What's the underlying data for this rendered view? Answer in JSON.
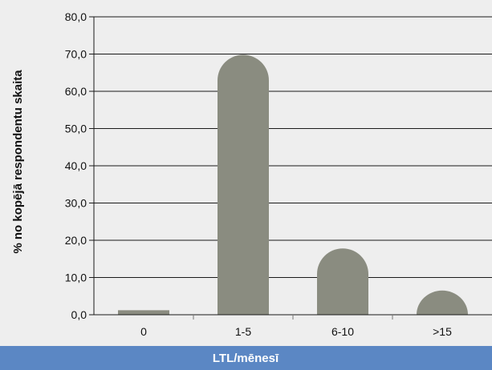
{
  "chart_data": {
    "type": "bar",
    "categories": [
      "0",
      "1-5",
      "6-10",
      ">15"
    ],
    "values": [
      1.2,
      69.8,
      17.8,
      6.5
    ],
    "ylim": [
      0,
      80
    ],
    "yticks": [
      "0,0",
      "10,0",
      "20,0",
      "30,0",
      "40,0",
      "50,0",
      "60,0",
      "70,0",
      "80,0"
    ],
    "ylabel": "% no kopējā respondentu skaita",
    "xlabel": "LTL/mēnesī",
    "grid": true,
    "bar_color": "#8a8c80",
    "grid_color": "#1a1a1a",
    "xlabel_band_color": "#5b87c4"
  }
}
